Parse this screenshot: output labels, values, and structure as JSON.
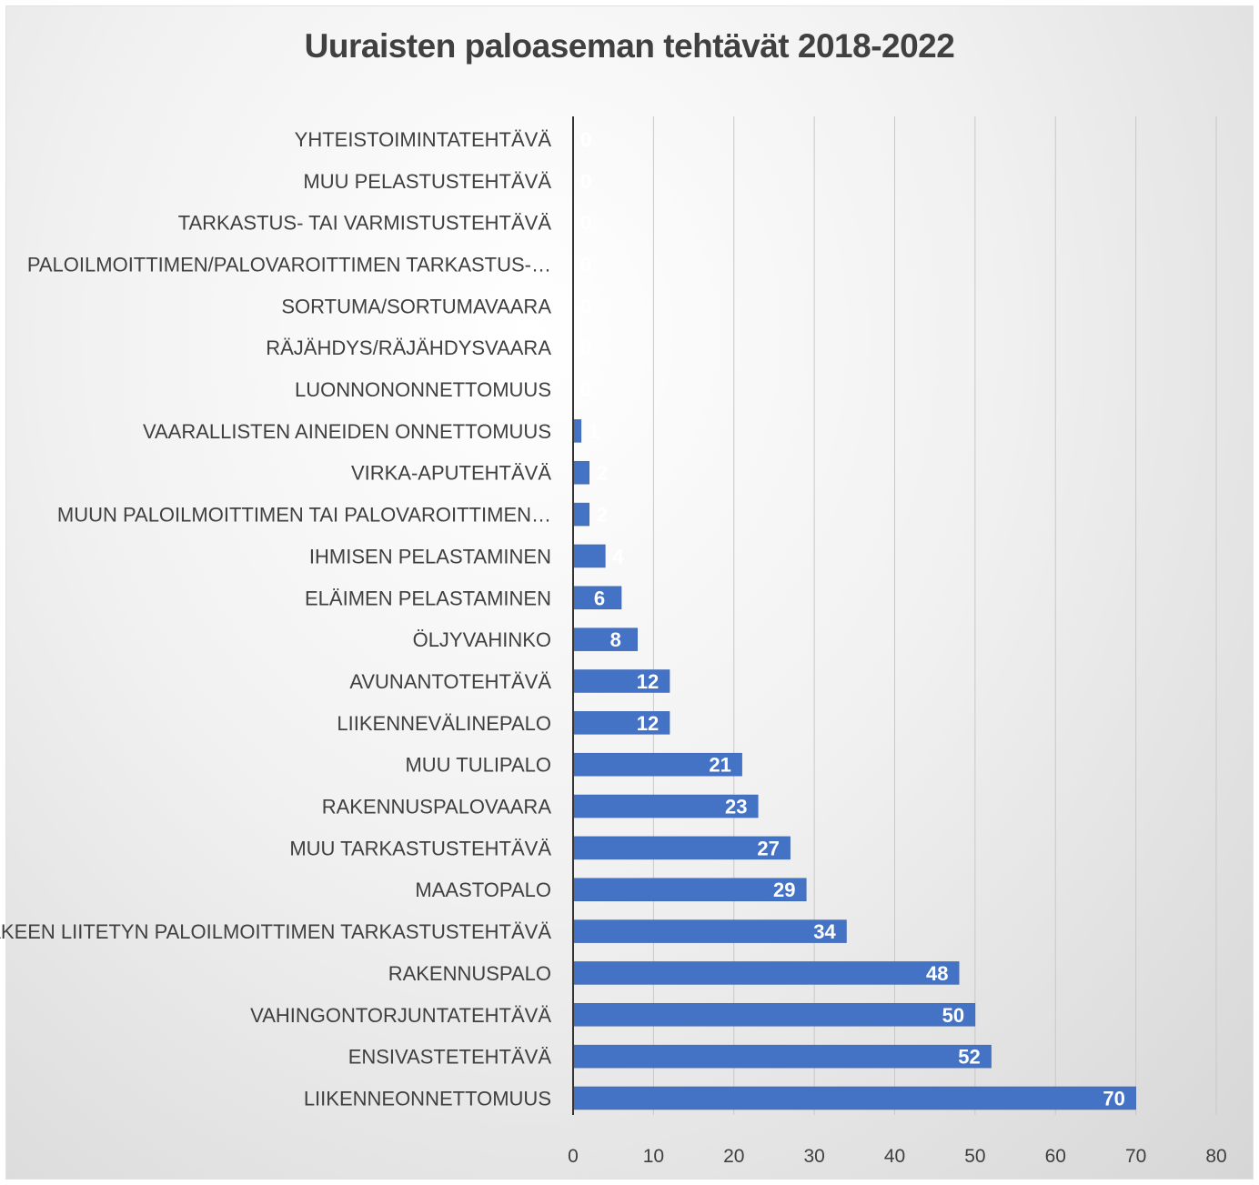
{
  "chart_data": {
    "type": "bar",
    "orientation": "horizontal",
    "title": "Uuraisten paloaseman tehtävät 2018-2022",
    "categories": [
      "YHTEISTOIMINTATEHTÄVÄ",
      "MUU PELASTUSTEHTÄVÄ",
      "TARKASTUS- TAI VARMISTUSTEHTÄVÄ",
      "PALOILMOITTIMEN/PALOVAROITTIMEN TARKASTUS-…",
      "SORTUMA/SORTUMAVAARA",
      "RÄJÄHDYS/RÄJÄHDYSVAARA",
      "LUONNONONNETTOMUUS",
      "VAARALLISTEN AINEIDEN ONNETTOMUUS",
      "VIRKA-APUTEHTÄVÄ",
      "MUUN PALOILMOITTIMEN TAI PALOVAROITTIMEN…",
      "IHMISEN PELASTAMINEN",
      "ELÄIMEN PELASTAMINEN",
      "ÖLJYVAHINKO",
      "AVUNANTOTEHTÄVÄ",
      "LIIKENNEVÄLINEPALO",
      "MUU TULIPALO",
      "RAKENNUSPALOVAARA",
      "MUU TARKASTUSTEHTÄVÄ",
      "MAASTOPALO",
      "HÄKEEN LIITETYN PALOILMOITTIMEN TARKASTUSTEHTÄVÄ",
      "RAKENNUSPALO",
      "VAHINGONTORJUNTATEHTÄVÄ",
      "ENSIVASTETEHTÄVÄ",
      "LIIKENNEONNETTOMUUS"
    ],
    "values": [
      0,
      0,
      0,
      0,
      0,
      0,
      0,
      1,
      2,
      2,
      4,
      6,
      8,
      12,
      12,
      21,
      23,
      27,
      29,
      34,
      48,
      50,
      52,
      70
    ],
    "xlim": [
      0,
      80
    ],
    "xticks": [
      0,
      10,
      20,
      30,
      40,
      50,
      60,
      70,
      80
    ],
    "xlabel": "",
    "ylabel": "",
    "grid": "vertical",
    "data_labels": true,
    "legend": "none",
    "colors": {
      "bar": "#4472C4",
      "bar_edge": "#3a62ad",
      "data_label": "#ffffff",
      "text": "#404040",
      "grid": "#c8c8c8",
      "axis": "#333333"
    }
  }
}
